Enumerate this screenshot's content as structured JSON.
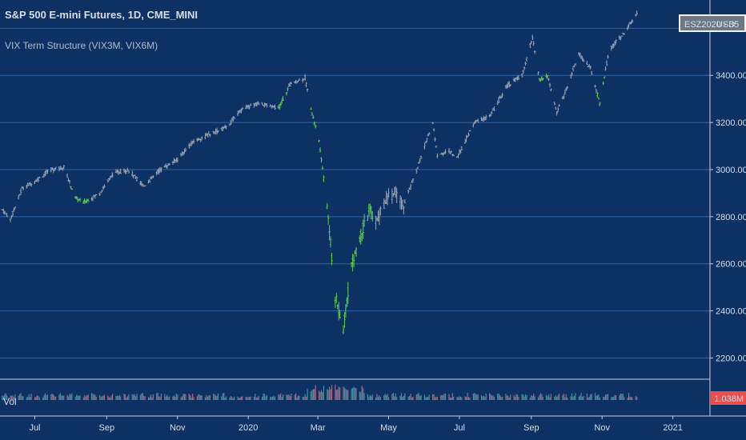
{
  "header": {
    "title": "S&P 500 E-mini Futures, 1D, CME_MINI",
    "indicator": "VIX Term Structure (VIX3M, VIX6M)"
  },
  "badges": {
    "symbol": "ESZ2020 - 3",
    "currency": "USD",
    "currency_suffix": "5",
    "volume": "1.038M"
  },
  "volume_label": "Vol",
  "colors": {
    "background": "#0d3163",
    "grid": "#2f66a8",
    "bar_neutral": "#9aa4b3",
    "bar_green": "#5fd14d",
    "volume_neutral": "#9d6a86",
    "volume_teal": "#3f8fa0",
    "volume_badge": "#e8504e"
  },
  "chart_data": {
    "type": "ohlc",
    "series": [
      {
        "name": "ESZ2020",
        "x": [
          "2019-06-01",
          "2019-06-10",
          "2019-06-20",
          "2019-07-01",
          "2019-07-15",
          "2019-07-26",
          "2019-08-05",
          "2019-08-12",
          "2019-08-26",
          "2019-09-06",
          "2019-09-19",
          "2019-10-03",
          "2019-10-17",
          "2019-10-31",
          "2019-11-15",
          "2019-11-29",
          "2019-12-13",
          "2019-12-27",
          "2020-01-10",
          "2020-01-27",
          "2020-02-06",
          "2020-02-19",
          "2020-02-24",
          "2020-03-02",
          "2020-03-09",
          "2020-03-16",
          "2020-03-23",
          "2020-03-30",
          "2020-04-08",
          "2020-04-15",
          "2020-04-21",
          "2020-04-29",
          "2020-05-07",
          "2020-05-14",
          "2020-05-26",
          "2020-06-08",
          "2020-06-12",
          "2020-06-22",
          "2020-06-29",
          "2020-07-14",
          "2020-07-28",
          "2020-08-10",
          "2020-08-24",
          "2020-09-02",
          "2020-09-08",
          "2020-09-15",
          "2020-09-23",
          "2020-10-01",
          "2020-10-12",
          "2020-10-22",
          "2020-10-30",
          "2020-11-06",
          "2020-11-09",
          "2020-11-20",
          "2020-12-01"
        ],
        "close": [
          2840,
          2790,
          2920,
          2950,
          3000,
          3010,
          2880,
          2860,
          2900,
          2980,
          3000,
          2930,
          3000,
          3040,
          3120,
          3150,
          3180,
          3260,
          3280,
          3260,
          3360,
          3390,
          3260,
          3120,
          2850,
          2460,
          2320,
          2600,
          2740,
          2820,
          2780,
          2880,
          2900,
          2850,
          3010,
          3200,
          3060,
          3080,
          3050,
          3200,
          3230,
          3350,
          3400,
          3560,
          3380,
          3400,
          3240,
          3340,
          3490,
          3430,
          3280,
          3480,
          3520,
          3580,
          3660
        ],
        "green_ranges": [
          [
            "2019-08-02",
            "2019-08-16"
          ],
          [
            "2020-01-27",
            "2020-02-04"
          ],
          [
            "2020-02-24",
            "2020-04-20"
          ],
          [
            "2020-09-08",
            "2020-09-14"
          ],
          [
            "2020-10-28",
            "2020-11-03"
          ]
        ]
      }
    ],
    "y_ticks": [
      3600,
      3400,
      3200,
      3000,
      2800,
      2600,
      2400,
      2200
    ],
    "y_tick_labels": [
      "3600.00",
      "3400.00",
      "3200.00",
      "3000.00",
      "2800.00",
      "2600.00",
      "2400.00",
      "2200.00"
    ],
    "ylim": [
      2110,
      3720
    ],
    "x_range": [
      "2019-06-01",
      "2021-02-02"
    ],
    "x_ticks": [
      {
        "date": "2019-07-01",
        "label": "Jul"
      },
      {
        "date": "2019-09-01",
        "label": "Sep"
      },
      {
        "date": "2019-11-01",
        "label": "Nov"
      },
      {
        "date": "2020-01-01",
        "label": "2020"
      },
      {
        "date": "2020-03-01",
        "label": "Mar"
      },
      {
        "date": "2020-05-01",
        "label": "May"
      },
      {
        "date": "2020-07-01",
        "label": "Jul"
      },
      {
        "date": "2020-09-01",
        "label": "Sep"
      },
      {
        "date": "2020-11-01",
        "label": "Nov"
      },
      {
        "date": "2021-01-01",
        "label": "2021"
      }
    ],
    "grid": true
  }
}
